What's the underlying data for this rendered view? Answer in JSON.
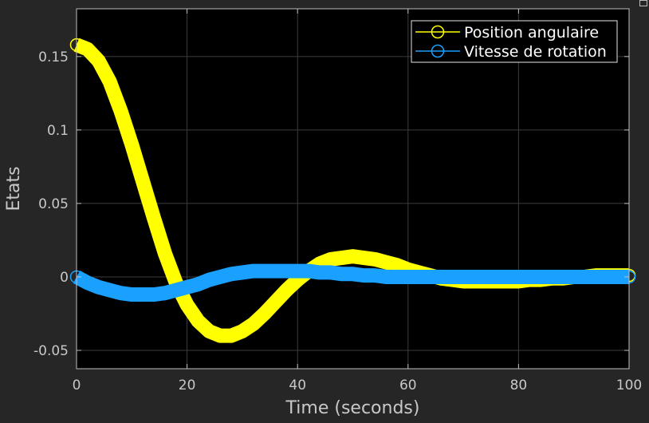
{
  "chart_data": {
    "type": "line",
    "title": "",
    "xlabel": "Time (seconds)",
    "ylabel": "Etats",
    "xlim": [
      0,
      100
    ],
    "ylim": [
      -0.0625,
      0.1825
    ],
    "xticks": [
      0,
      20,
      40,
      60,
      80,
      100
    ],
    "xtick_labels": [
      "0",
      "20",
      "40",
      "60",
      "80",
      "100"
    ],
    "yticks": [
      -0.05,
      0,
      0.05,
      0.1,
      0.15
    ],
    "ytick_labels": [
      "-0.05",
      "0",
      "0.05",
      "0.1",
      "0.15"
    ],
    "grid": true,
    "legend_position": "top-right",
    "background": "#000000",
    "figure_background": "#262626",
    "series": [
      {
        "name": "Position angulaire",
        "color": "#ffff00",
        "marker": "circle",
        "x": [
          0,
          2,
          4,
          6,
          8,
          10,
          12,
          14,
          16,
          18,
          20,
          22,
          24,
          26,
          28,
          30,
          32,
          34,
          36,
          38,
          40,
          42,
          44,
          46,
          48,
          50,
          52,
          54,
          56,
          58,
          60,
          62,
          64,
          66,
          68,
          70,
          72,
          74,
          76,
          78,
          80,
          82,
          84,
          86,
          88,
          90,
          92,
          94,
          96,
          98,
          100
        ],
        "y": [
          0.158,
          0.155,
          0.147,
          0.133,
          0.113,
          0.09,
          0.065,
          0.04,
          0.016,
          -0.004,
          -0.019,
          -0.03,
          -0.037,
          -0.04,
          -0.04,
          -0.037,
          -0.032,
          -0.025,
          -0.017,
          -0.009,
          -0.002,
          0.004,
          0.009,
          0.012,
          0.013,
          0.014,
          0.013,
          0.012,
          0.01,
          0.008,
          0.005,
          0.003,
          0.001,
          -0.001,
          -0.002,
          -0.003,
          -0.003,
          -0.003,
          -0.003,
          -0.003,
          -0.003,
          -0.002,
          -0.002,
          -0.001,
          -0.001,
          0,
          0,
          0.001,
          0.001,
          0.001,
          0.001
        ]
      },
      {
        "name": "Vitesse de rotation",
        "color": "#1aa0ff",
        "marker": "circle",
        "x": [
          0,
          2,
          4,
          6,
          8,
          10,
          12,
          14,
          16,
          18,
          20,
          22,
          24,
          26,
          28,
          30,
          32,
          34,
          36,
          38,
          40,
          42,
          44,
          46,
          48,
          50,
          52,
          54,
          56,
          58,
          60,
          62,
          64,
          66,
          68,
          70,
          72,
          74,
          76,
          78,
          80,
          82,
          84,
          86,
          88,
          90,
          92,
          94,
          96,
          98,
          100
        ],
        "y": [
          0,
          -0.004,
          -0.007,
          -0.009,
          -0.011,
          -0.012,
          -0.012,
          -0.012,
          -0.011,
          -0.009,
          -0.007,
          -0.005,
          -0.002,
          0,
          0.002,
          0.003,
          0.004,
          0.004,
          0.004,
          0.004,
          0.004,
          0.004,
          0.003,
          0.003,
          0.002,
          0.002,
          0.001,
          0.001,
          0,
          0,
          0,
          0,
          0,
          0,
          0,
          0,
          0,
          0,
          0,
          0,
          0,
          0,
          0,
          0,
          0,
          0,
          0,
          0,
          0,
          0,
          0
        ]
      }
    ]
  }
}
